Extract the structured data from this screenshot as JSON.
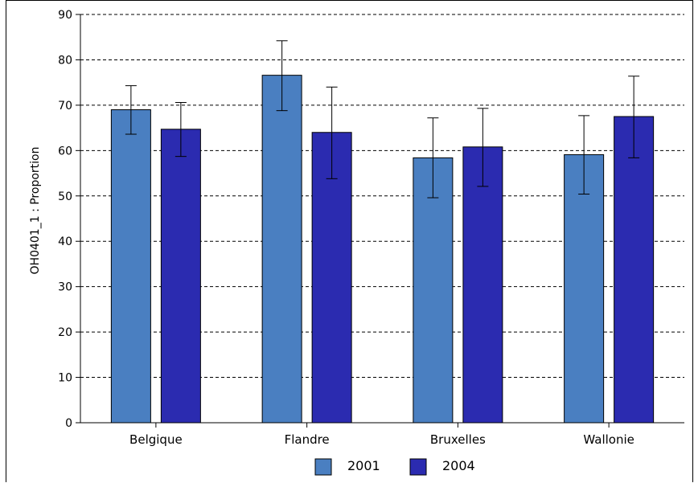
{
  "chart_data": {
    "type": "bar",
    "categories": [
      "Belgique",
      "Flandre",
      "Bruxelles",
      "Wallonie"
    ],
    "series": [
      {
        "name": "2001",
        "color": "#4a7fc1",
        "values": [
          69.0,
          76.6,
          58.4,
          59.1
        ],
        "error_low": [
          63.6,
          68.8,
          49.6,
          50.4
        ],
        "error_high": [
          74.3,
          84.2,
          67.2,
          67.7
        ]
      },
      {
        "name": "2004",
        "color": "#2b2bb0",
        "values": [
          64.7,
          64.0,
          60.8,
          67.5
        ],
        "error_low": [
          58.7,
          53.8,
          52.1,
          58.4
        ],
        "error_high": [
          70.6,
          74.0,
          69.3,
          76.4
        ]
      }
    ],
    "ylabel": "OH0401_1 : Proportion",
    "xlabel": "",
    "ylim": [
      0,
      90
    ],
    "yticks": [
      0,
      10,
      20,
      30,
      40,
      50,
      60,
      70,
      80,
      90
    ],
    "grid": "horizontal-dashed",
    "legend_position": "bottom-center"
  }
}
